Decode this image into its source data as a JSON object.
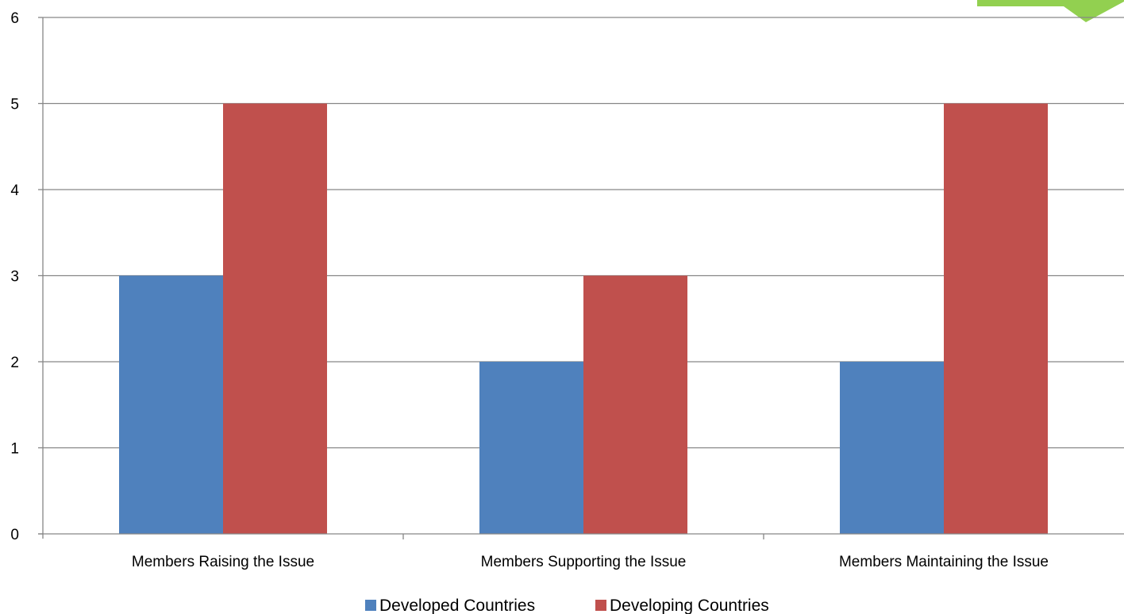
{
  "chart_data": {
    "type": "bar",
    "categories": [
      "Members Raising the Issue",
      "Members Supporting the Issue",
      "Members Maintaining the Issue"
    ],
    "series": [
      {
        "name": "Developed Countries",
        "values": [
          3,
          2,
          2
        ],
        "color": "#4F81BD"
      },
      {
        "name": "Developing Countries",
        "values": [
          5,
          3,
          5
        ],
        "color": "#C0504D"
      }
    ],
    "yticks": [
      "0",
      "1",
      "2",
      "3",
      "4",
      "5",
      "6"
    ],
    "ylim": [
      0,
      6
    ],
    "grid": true,
    "legend_position": "bottom",
    "gridline_color": "#868686",
    "axis_color": "#868686"
  },
  "decoration": {
    "corner_shape_color": "#92D050",
    "corner_shape": "green-arrow-shape"
  }
}
